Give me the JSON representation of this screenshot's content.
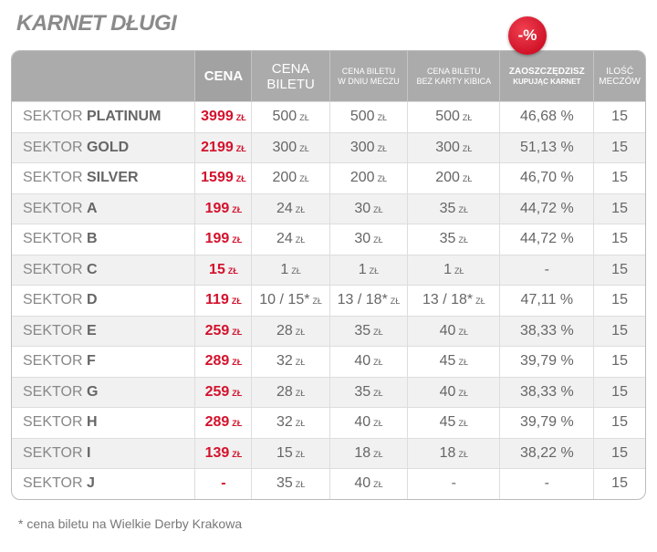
{
  "title": "KARNET DŁUGI",
  "badge": "-%",
  "table": {
    "columns": [
      [
        "CENA"
      ],
      [
        "CENA",
        "BILETU"
      ],
      [
        "CENA BILETU",
        "W DNIU MECZU"
      ],
      [
        "CENA BILETU",
        "BEZ KARTY KIBICA"
      ],
      [
        "ZAOSZCZĘDZISZ",
        "KUPUJĄC KARNET"
      ],
      [
        "ILOŚĆ",
        "MECZÓW"
      ]
    ],
    "rows": [
      {
        "sector": [
          "SEKTOR",
          "PLATINUM"
        ],
        "cells": [
          [
            "3999",
            "ZŁ"
          ],
          [
            "500",
            "ZŁ"
          ],
          [
            "500",
            "ZŁ"
          ],
          [
            "500",
            "ZŁ"
          ],
          [
            "46,68 %"
          ],
          [
            "15"
          ]
        ]
      },
      {
        "sector": [
          "SEKTOR",
          "GOLD"
        ],
        "cells": [
          [
            "2199",
            "ZŁ"
          ],
          [
            "300",
            "ZŁ"
          ],
          [
            "300",
            "ZŁ"
          ],
          [
            "300",
            "ZŁ"
          ],
          [
            "51,13 %"
          ],
          [
            "15"
          ]
        ]
      },
      {
        "sector": [
          "SEKTOR",
          "SILVER"
        ],
        "cells": [
          [
            "1599",
            "ZŁ"
          ],
          [
            "200",
            "ZŁ"
          ],
          [
            "200",
            "ZŁ"
          ],
          [
            "200",
            "ZŁ"
          ],
          [
            "46,70 %"
          ],
          [
            "15"
          ]
        ]
      },
      {
        "sector": [
          "SEKTOR",
          "A"
        ],
        "cells": [
          [
            "199",
            "ZŁ"
          ],
          [
            "24",
            "ZŁ"
          ],
          [
            "30",
            "ZŁ"
          ],
          [
            "35",
            "ZŁ"
          ],
          [
            "44,72 %"
          ],
          [
            "15"
          ]
        ]
      },
      {
        "sector": [
          "SEKTOR",
          "B"
        ],
        "cells": [
          [
            "199",
            "ZŁ"
          ],
          [
            "24",
            "ZŁ"
          ],
          [
            "30",
            "ZŁ"
          ],
          [
            "35",
            "ZŁ"
          ],
          [
            "44,72 %"
          ],
          [
            "15"
          ]
        ]
      },
      {
        "sector": [
          "SEKTOR",
          "C"
        ],
        "cells": [
          [
            "15",
            "ZŁ"
          ],
          [
            "1",
            "ZŁ"
          ],
          [
            "1",
            "ZŁ"
          ],
          [
            "1",
            "ZŁ"
          ],
          [
            "-"
          ],
          [
            "15"
          ]
        ]
      },
      {
        "sector": [
          "SEKTOR",
          "D"
        ],
        "cells": [
          [
            "119",
            "ZŁ"
          ],
          [
            "10 / 15*",
            "ZŁ"
          ],
          [
            "13 / 18*",
            "ZŁ"
          ],
          [
            "13 / 18*",
            "ZŁ"
          ],
          [
            "47,11 %"
          ],
          [
            "15"
          ]
        ]
      },
      {
        "sector": [
          "SEKTOR",
          "E"
        ],
        "cells": [
          [
            "259",
            "ZŁ"
          ],
          [
            "28",
            "ZŁ"
          ],
          [
            "35",
            "ZŁ"
          ],
          [
            "40",
            "ZŁ"
          ],
          [
            "38,33 %"
          ],
          [
            "15"
          ]
        ]
      },
      {
        "sector": [
          "SEKTOR",
          "F"
        ],
        "cells": [
          [
            "289",
            "ZŁ"
          ],
          [
            "32",
            "ZŁ"
          ],
          [
            "40",
            "ZŁ"
          ],
          [
            "45",
            "ZŁ"
          ],
          [
            "39,79 %"
          ],
          [
            "15"
          ]
        ]
      },
      {
        "sector": [
          "SEKTOR",
          "G"
        ],
        "cells": [
          [
            "259",
            "ZŁ"
          ],
          [
            "28",
            "ZŁ"
          ],
          [
            "35",
            "ZŁ"
          ],
          [
            "40",
            "ZŁ"
          ],
          [
            "38,33 %"
          ],
          [
            "15"
          ]
        ]
      },
      {
        "sector": [
          "SEKTOR",
          "H"
        ],
        "cells": [
          [
            "289",
            "ZŁ"
          ],
          [
            "32",
            "ZŁ"
          ],
          [
            "40",
            "ZŁ"
          ],
          [
            "45",
            "ZŁ"
          ],
          [
            "39,79 %"
          ],
          [
            "15"
          ]
        ]
      },
      {
        "sector": [
          "SEKTOR",
          "I"
        ],
        "cells": [
          [
            "139",
            "ZŁ"
          ],
          [
            "15",
            "ZŁ"
          ],
          [
            "18",
            "ZŁ"
          ],
          [
            "18",
            "ZŁ"
          ],
          [
            "38,22 %"
          ],
          [
            "15"
          ]
        ]
      },
      {
        "sector": [
          "SEKTOR",
          "J"
        ],
        "cells": [
          [
            "-"
          ],
          [
            "35",
            "ZŁ"
          ],
          [
            "40",
            "ZŁ"
          ],
          [
            "-"
          ],
          [
            "-"
          ],
          [
            "15"
          ]
        ]
      }
    ]
  },
  "footnote": "* cena biletu na Wielkie Derby Krakowa"
}
